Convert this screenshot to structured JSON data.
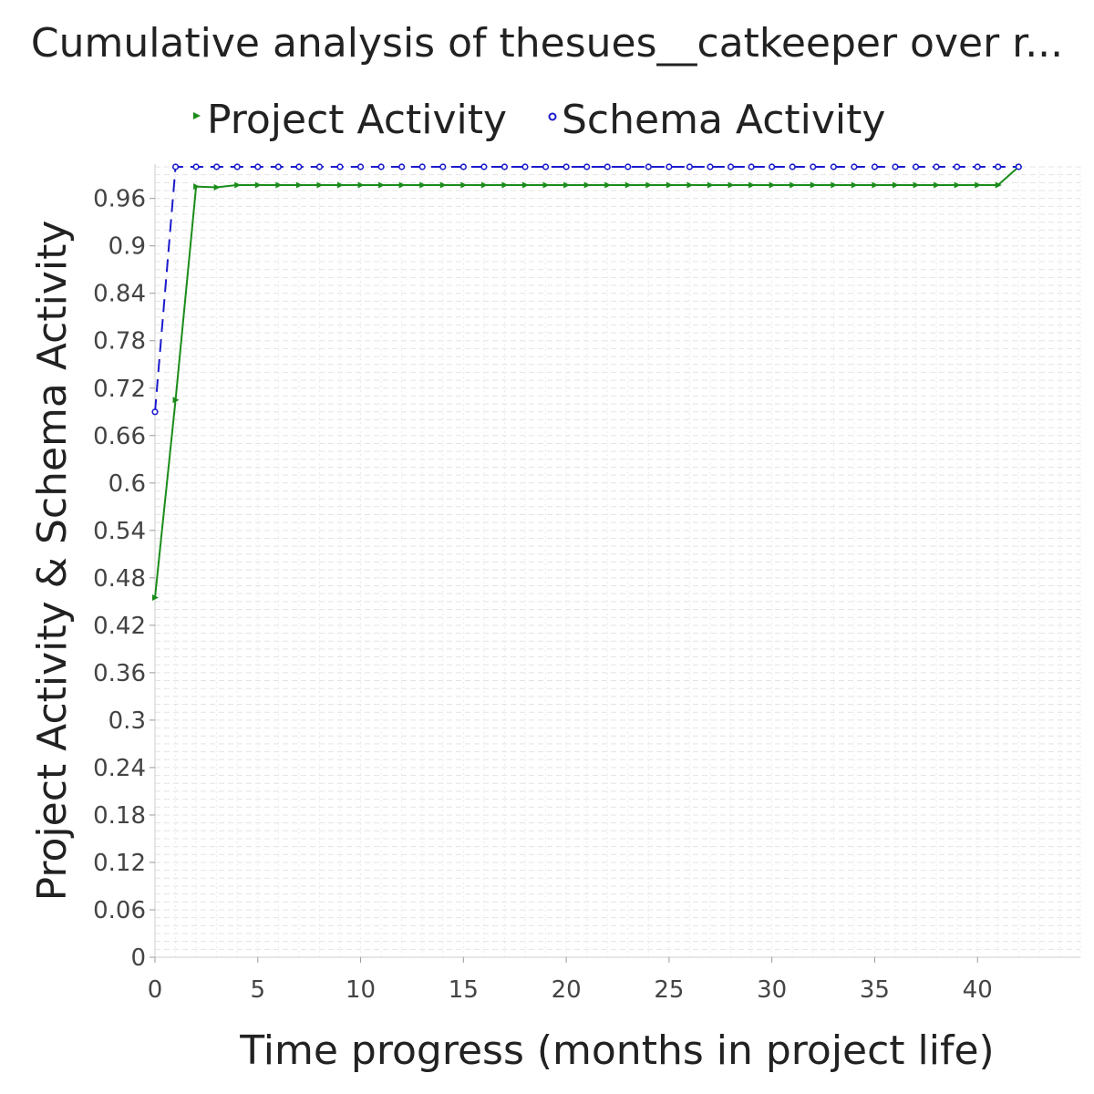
{
  "chart_data": {
    "type": "line",
    "title": "Cumulative analysis of thesues__catkeeper over r...",
    "xlabel": "Time progress (months in project life)",
    "ylabel": "Project Activity & Schema Activity",
    "xlim": [
      0,
      45
    ],
    "ylim": [
      0,
      1.0
    ],
    "x_ticks": [
      "0",
      "5",
      "10",
      "15",
      "20",
      "25",
      "30",
      "35",
      "40"
    ],
    "y_ticks": [
      "0",
      "0.06",
      "0.12",
      "0.18",
      "0.24",
      "0.3",
      "0.36",
      "0.42",
      "0.48",
      "0.54",
      "0.6",
      "0.66",
      "0.72",
      "0.78",
      "0.84",
      "0.9",
      "0.96"
    ],
    "grid": true,
    "legend_position": "top-center",
    "series": [
      {
        "name": "Project Activity",
        "color": "#1a8c1a",
        "line_style": "solid",
        "marker": "triangle-right",
        "x": [
          0,
          1,
          2,
          3,
          4,
          5,
          6,
          7,
          8,
          9,
          10,
          11,
          12,
          13,
          14,
          15,
          16,
          17,
          18,
          19,
          20,
          21,
          22,
          23,
          24,
          25,
          26,
          27,
          28,
          29,
          30,
          31,
          32,
          33,
          34,
          35,
          36,
          37,
          38,
          39,
          40,
          41,
          42
        ],
        "y": [
          0.455,
          0.705,
          0.975,
          0.974,
          0.977,
          0.977,
          0.977,
          0.977,
          0.977,
          0.977,
          0.977,
          0.977,
          0.977,
          0.977,
          0.977,
          0.977,
          0.977,
          0.977,
          0.977,
          0.977,
          0.977,
          0.977,
          0.977,
          0.977,
          0.977,
          0.977,
          0.977,
          0.977,
          0.977,
          0.977,
          0.977,
          0.977,
          0.977,
          0.977,
          0.977,
          0.977,
          0.977,
          0.977,
          0.977,
          0.977,
          0.977,
          0.977,
          1.0
        ]
      },
      {
        "name": "Schema Activity",
        "color": "#1a1acc",
        "line_style": "dashed",
        "marker": "circle",
        "x": [
          0,
          1,
          2,
          3,
          4,
          5,
          6,
          7,
          8,
          9,
          10,
          11,
          12,
          13,
          14,
          15,
          16,
          17,
          18,
          19,
          20,
          21,
          22,
          23,
          24,
          25,
          26,
          27,
          28,
          29,
          30,
          31,
          32,
          33,
          34,
          35,
          36,
          37,
          38,
          39,
          40,
          41,
          42
        ],
        "y": [
          0.69,
          1.0,
          1.0,
          1.0,
          1.0,
          1.0,
          1.0,
          1.0,
          1.0,
          1.0,
          1.0,
          1.0,
          1.0,
          1.0,
          1.0,
          1.0,
          1.0,
          1.0,
          1.0,
          1.0,
          1.0,
          1.0,
          1.0,
          1.0,
          1.0,
          1.0,
          1.0,
          1.0,
          1.0,
          1.0,
          1.0,
          1.0,
          1.0,
          1.0,
          1.0,
          1.0,
          1.0,
          1.0,
          1.0,
          1.0,
          1.0,
          1.0,
          1.0
        ]
      }
    ]
  }
}
